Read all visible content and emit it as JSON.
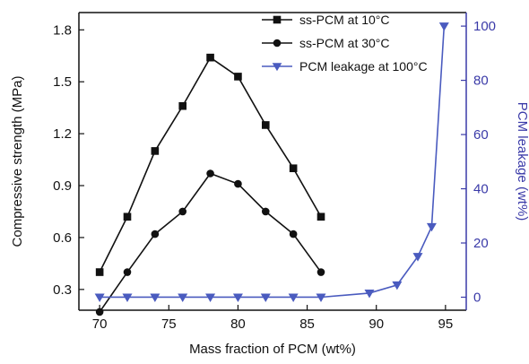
{
  "chart_data": {
    "type": "line",
    "xlabel": "Mass fraction of PCM (wt%)",
    "ylabel": "Compressive strength (MPa)",
    "y2label": "PCM leakage (wt%)",
    "xlim": [
      68.5,
      96.5
    ],
    "ylim": [
      0.18,
      1.9
    ],
    "y2lim": [
      -4.8,
      105
    ],
    "xticks": [
      70,
      75,
      80,
      85,
      90,
      95
    ],
    "yticks": [
      0.3,
      0.6,
      0.9,
      1.2,
      1.5,
      1.8
    ],
    "y2ticks": [
      0,
      20,
      40,
      60,
      80,
      100
    ],
    "xtick_labels": [
      "70",
      "75",
      "80",
      "85",
      "90",
      "95"
    ],
    "ytick_labels": [
      "0.3",
      "0.6",
      "0.9",
      "1.2",
      "1.5",
      "1.8"
    ],
    "y2tick_labels": [
      "0",
      "20",
      "40",
      "60",
      "80",
      "100"
    ],
    "legend_position": "top-right",
    "series": [
      {
        "name": "ss-PCM at 10°C",
        "axis": "left",
        "marker": "square",
        "color": "#111111",
        "x": [
          70,
          72,
          74,
          76,
          78,
          80,
          82,
          84,
          86
        ],
        "y": [
          0.4,
          0.72,
          1.1,
          1.36,
          1.64,
          1.53,
          1.25,
          1.0,
          0.72
        ]
      },
      {
        "name": "ss-PCM at 30°C",
        "axis": "left",
        "marker": "circle",
        "color": "#111111",
        "x": [
          70,
          72,
          74,
          76,
          78,
          80,
          82,
          84,
          86
        ],
        "y": [
          0.17,
          0.4,
          0.62,
          0.75,
          0.97,
          0.91,
          0.75,
          0.62,
          0.4
        ]
      },
      {
        "name": "PCM leakage at 100°C",
        "axis": "right",
        "marker": "triangle-down",
        "color": "#4a5bbf",
        "x": [
          70,
          72,
          74,
          76,
          78,
          80,
          82,
          84,
          86,
          89.5,
          91.5,
          93,
          94,
          94.9
        ],
        "y": [
          0,
          0,
          0,
          0,
          0,
          0,
          0,
          0,
          0,
          1.5,
          4.5,
          15,
          26,
          100
        ]
      }
    ]
  },
  "colors": {
    "left_axis": "#111111",
    "right_axis": "#3a3aa8"
  }
}
